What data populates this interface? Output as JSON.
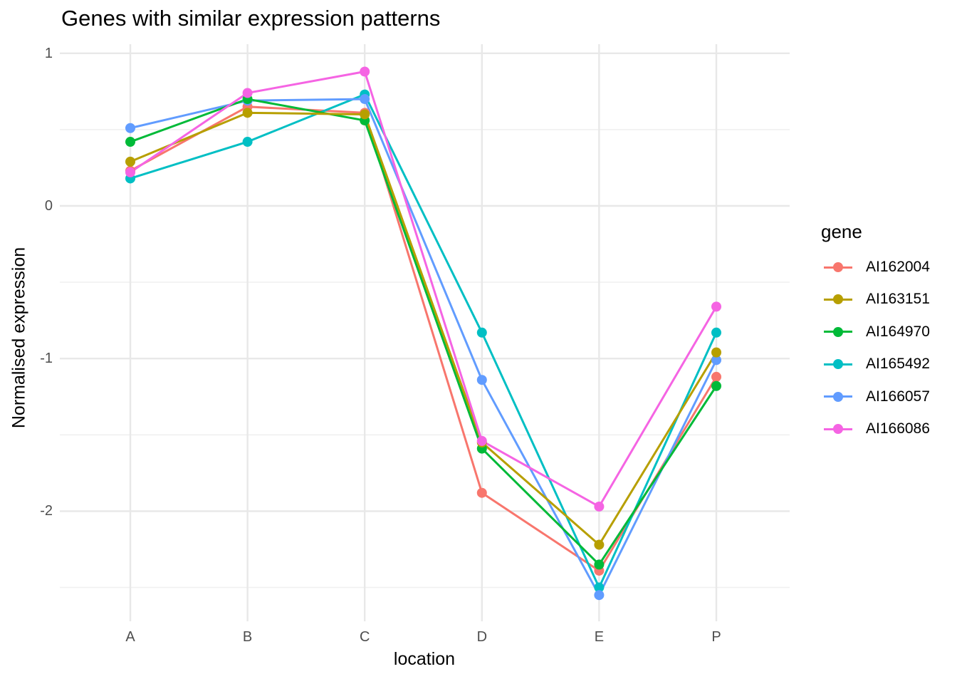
{
  "chart_data": {
    "type": "line",
    "title": "Genes with similar expression patterns",
    "xlabel": "location",
    "ylabel": "Normalised expression",
    "legend_title": "gene",
    "legend_position": "right",
    "grid": "major+minor",
    "categories": [
      "A",
      "B",
      "C",
      "D",
      "E",
      "P"
    ],
    "ylim": [
      -2.72,
      1.06
    ],
    "y_major_ticks": [
      {
        "value": 1,
        "label": "1"
      },
      {
        "value": 0,
        "label": "0"
      },
      {
        "value": -1,
        "label": "-1"
      },
      {
        "value": -2,
        "label": "-2"
      }
    ],
    "y_minor_ticks": [
      0.5,
      -0.5,
      -1.5,
      -2.5
    ],
    "series": [
      {
        "name": "AI162004",
        "color": "#F8766D",
        "values": [
          0.23,
          0.65,
          0.61,
          -1.88,
          -2.39,
          -1.12
        ]
      },
      {
        "name": "AI163151",
        "color": "#B79F00",
        "values": [
          0.29,
          0.61,
          0.6,
          -1.55,
          -2.22,
          -0.96
        ]
      },
      {
        "name": "AI164970",
        "color": "#00BA38",
        "values": [
          0.42,
          0.7,
          0.56,
          -1.59,
          -2.35,
          -1.18
        ]
      },
      {
        "name": "AI165492",
        "color": "#00BFC4",
        "values": [
          0.18,
          0.42,
          0.73,
          -0.83,
          -2.5,
          -0.83
        ]
      },
      {
        "name": "AI166057",
        "color": "#619CFF",
        "values": [
          0.51,
          0.69,
          0.7,
          -1.14,
          -2.55,
          -1.01
        ]
      },
      {
        "name": "AI166086",
        "color": "#F564E3",
        "values": [
          0.22,
          0.74,
          0.88,
          -1.54,
          -1.97,
          -0.66
        ]
      }
    ],
    "style": {
      "grid_major_color": "#E8E8E8",
      "grid_minor_color": "#F0F0F0",
      "background": "#FFFFFF",
      "tick_label_color": "#4D4D4D",
      "text_color": "#000000"
    }
  }
}
